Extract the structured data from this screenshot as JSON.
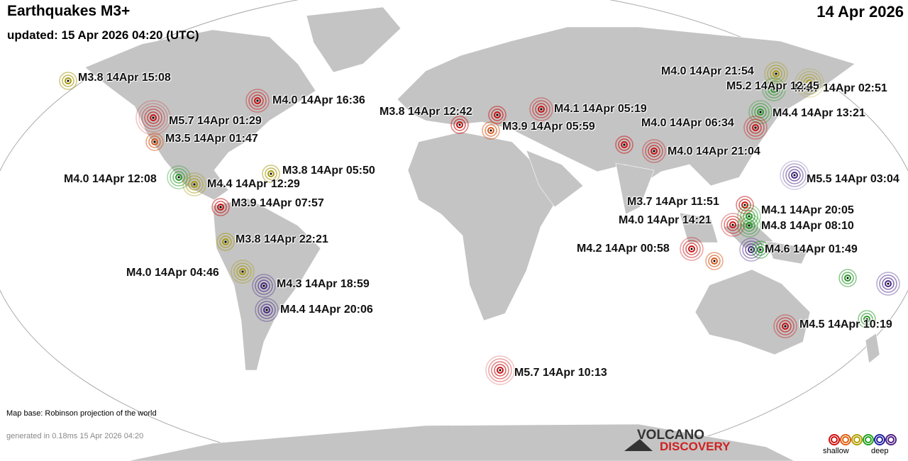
{
  "header": {
    "title": "Earthquakes M3+",
    "updated": "updated: 15 Apr 2026 04:20 (UTC)",
    "date": "14 Apr 2026"
  },
  "footer": {
    "map_base": "Map base: Robinson projection of the world",
    "generated": "generated in 0.18ms 15 Apr 2026 04:20"
  },
  "logo": {
    "line1": "VOLCANO",
    "line2": "DISCOVERY"
  },
  "legend": {
    "shallow": "shallow",
    "deep": "deep",
    "colors": [
      "#d01010",
      "#e06010",
      "#b0a000",
      "#20a020",
      "#2020a0",
      "#502080"
    ]
  },
  "depth_colors": {
    "red": "#cc1111",
    "orange": "#d8571a",
    "yellow": "#a89a10",
    "green": "#2a9a2a",
    "blue": "#202090",
    "purple": "#4a2a8a"
  },
  "quakes": [
    {
      "label": "M3.8 14Apr 15:08",
      "depth": "yellow"
    },
    {
      "label": "M4.0 14Apr 16:36",
      "depth": "red"
    },
    {
      "label": "M5.7 14Apr 01:29",
      "depth": "red"
    },
    {
      "label": "M3.5 14Apr 01:47",
      "depth": "orange"
    },
    {
      "label": "M4.0 14Apr 12:08",
      "depth": "green"
    },
    {
      "label": "M4.4 14Apr 12:29",
      "depth": "yellow"
    },
    {
      "label": "M3.8 14Apr 05:50",
      "depth": "yellow"
    },
    {
      "label": "M3.9 14Apr 07:57",
      "depth": "red"
    },
    {
      "label": "M3.8 14Apr 22:21",
      "depth": "yellow"
    },
    {
      "label": "M4.0 14Apr 04:46",
      "depth": "yellow"
    },
    {
      "label": "M4.3 14Apr 18:59",
      "depth": "purple"
    },
    {
      "label": "M4.4 14Apr 20:06",
      "depth": "purple"
    },
    {
      "label": "",
      "depth": "red"
    },
    {
      "label": "M3.8 14Apr 12:42",
      "depth": "red"
    },
    {
      "label": "M3.9 14Apr 05:59",
      "depth": "orange"
    },
    {
      "label": "M4.1 14Apr 05:19",
      "depth": "red"
    },
    {
      "label": "",
      "depth": "red"
    },
    {
      "label": "M4.0 14Apr 21:04",
      "depth": "red"
    },
    {
      "label": "M4.0 14Apr 21:54",
      "depth": "yellow"
    },
    {
      "label": "M4.7 14Apr 02:51",
      "depth": "yellow"
    },
    {
      "label": "M5.2 14Apr 12:45",
      "depth": "green"
    },
    {
      "label": "M4.4 14Apr 13:21",
      "depth": "green"
    },
    {
      "label": "M4.0 14Apr 06:34",
      "depth": "red"
    },
    {
      "label": "M5.5 14Apr 03:04",
      "depth": "purple"
    },
    {
      "label": "M3.7 14Apr 11:51",
      "depth": "red"
    },
    {
      "label": "M4.1 14Apr 20:05",
      "depth": "green"
    },
    {
      "label": "M4.0 14Apr 14:21",
      "depth": "red"
    },
    {
      "label": "M4.8 14Apr 08:10",
      "depth": "green"
    },
    {
      "label": "M4.2 14Apr 00:58",
      "depth": "red"
    },
    {
      "label": "",
      "depth": "orange"
    },
    {
      "label": "",
      "depth": "purple"
    },
    {
      "label": "M4.6 14Apr 01:49",
      "depth": "green"
    },
    {
      "label": "",
      "depth": "green"
    },
    {
      "label": "",
      "depth": "purple"
    },
    {
      "label": "",
      "depth": "green"
    },
    {
      "label": "M4.5 14Apr 10:19",
      "depth": "red"
    },
    {
      "label": "M5.7 14Apr 10:13",
      "depth": "red"
    }
  ]
}
